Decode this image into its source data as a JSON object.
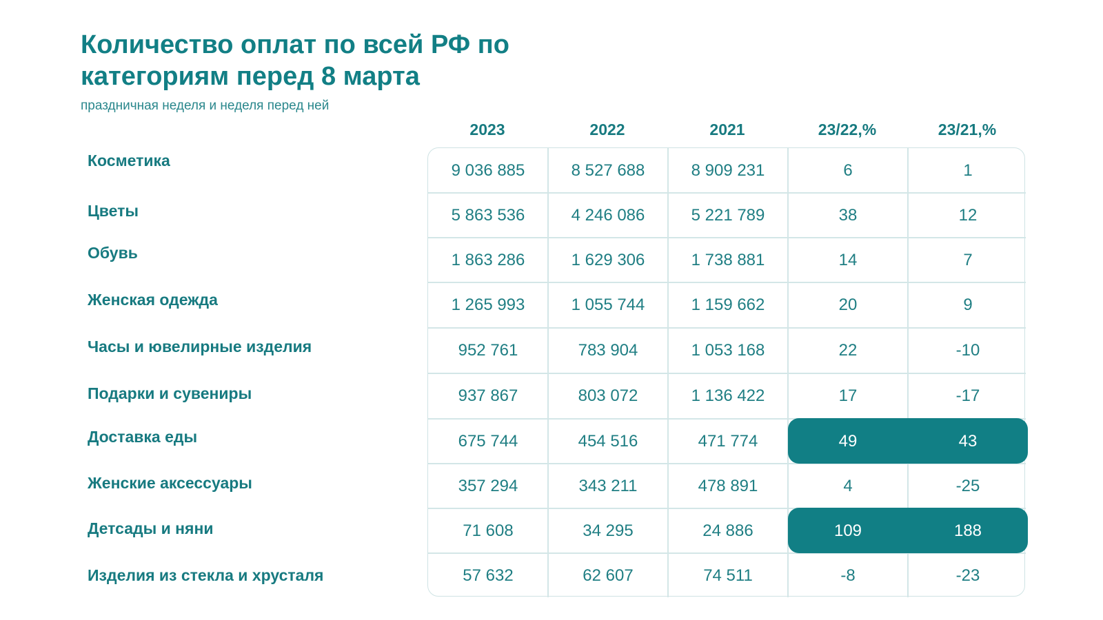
{
  "title": "Количество оплат по всей РФ по категориям перед 8 марта",
  "subtitle": "праздничная неделя и неделя перед ней",
  "columns": [
    "2023",
    "2022",
    "2021",
    "23/22,%",
    "23/21,%"
  ],
  "rows": [
    {
      "label": "Косметика",
      "values": [
        "9 036 885",
        "8 527 688",
        "8 909 231",
        "6",
        "1"
      ],
      "highlight": false
    },
    {
      "label": "Цветы",
      "values": [
        "5 863 536",
        "4 246 086",
        "5 221 789",
        "38",
        "12"
      ],
      "highlight": false
    },
    {
      "label": "Обувь",
      "values": [
        "1 863 286",
        "1 629 306",
        "1 738 881",
        "14",
        "7"
      ],
      "highlight": false
    },
    {
      "label": "Женская одежда",
      "values": [
        "1 265 993",
        "1 055 744",
        "1 159 662",
        "20",
        "9"
      ],
      "highlight": false
    },
    {
      "label": "Часы и ювелирные изделия",
      "values": [
        "952 761",
        "783 904",
        "1 053 168",
        "22",
        "-10"
      ],
      "highlight": false
    },
    {
      "label": "Подарки и сувениры",
      "values": [
        "937 867",
        "803 072",
        "1 136 422",
        "17",
        "-17"
      ],
      "highlight": false
    },
    {
      "label": "Доставка еды",
      "values": [
        "675 744",
        "454 516",
        "471 774",
        "49",
        "43"
      ],
      "highlight": true
    },
    {
      "label": "Женские аксессуары",
      "values": [
        "357 294",
        "343 211",
        "478 891",
        "4",
        "-25"
      ],
      "highlight": false
    },
    {
      "label": "Детсады и няни",
      "values": [
        "71 608",
        "34 295",
        "24 886",
        "109",
        "188"
      ],
      "highlight": true
    },
    {
      "label": "Изделия из стекла и хрусталя",
      "values": [
        "57 632",
        "62 607",
        "74 511",
        "-8",
        "-23"
      ],
      "highlight": false
    }
  ],
  "colors": {
    "accent": "#117f85",
    "text": "#177a80",
    "grid": "#d3e6e7"
  }
}
